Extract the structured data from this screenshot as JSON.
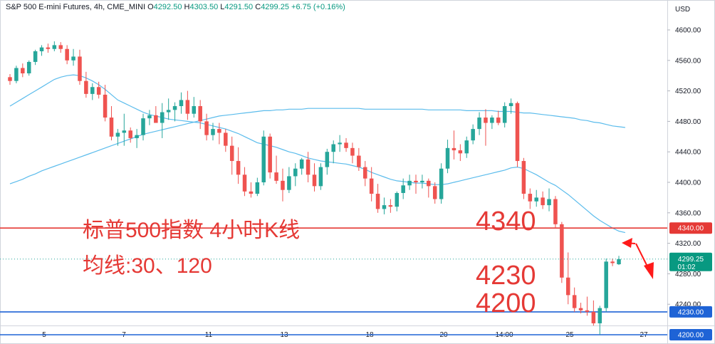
{
  "header": {
    "symbol": "S&P 500 E-mini Futures, 4h, CME_MINI",
    "open_label": "O",
    "open": "4292.50",
    "high_label": "H",
    "high": "4303.50",
    "low_label": "L",
    "low": "4291.50",
    "close_label": "C",
    "close": "4299.25",
    "change": "+6.75 (+0.16%)"
  },
  "annotations": {
    "title_cn": "标普500指数 4小时K线",
    "ma_cn": "均线:30、120",
    "level_4340": "4340",
    "level_4230": "4230",
    "level_4200": "4200"
  },
  "axis": {
    "currency": "USD",
    "price_ticks": [
      "4600.00",
      "4560.00",
      "4520.00",
      "4480.00",
      "4440.00",
      "4400.00",
      "4360.00",
      "4320.00",
      "4280.00",
      "4240.00"
    ],
    "time_ticks": [
      "5",
      "7",
      "11",
      "13",
      "18",
      "20",
      "14:00",
      "25",
      "27"
    ]
  },
  "price_badges": [
    {
      "label": "4340.00",
      "value": 4340,
      "color": "#e53935"
    },
    {
      "label": "4230.00",
      "value": 4230,
      "color": "#1e63d6"
    },
    {
      "label": "4200.00",
      "value": 4200,
      "color": "#1e63d6"
    }
  ],
  "last_price": {
    "label": "4299.25",
    "countdown": "01:02",
    "value": 4299.25,
    "color": "#089981"
  },
  "colors": {
    "up": "#26a69a",
    "down": "#ef5350",
    "ma": "#5bbcec",
    "support": "#1e63d6",
    "resistance": "#e53935"
  },
  "chart_data": {
    "type": "candlestick",
    "timeframe": "4h",
    "y_unit": "USD",
    "ylim": [
      4195,
      4615
    ],
    "horizontal_levels": [
      4340,
      4230,
      4200
    ],
    "series": [
      {
        "name": "K",
        "ohlc": [
          [
            4538,
            4542,
            4528,
            4533
          ],
          [
            4533,
            4553,
            4530,
            4550
          ],
          [
            4550,
            4556,
            4538,
            4543
          ],
          [
            4543,
            4560,
            4540,
            4558
          ],
          [
            4558,
            4574,
            4554,
            4572
          ],
          [
            4572,
            4580,
            4566,
            4577
          ],
          [
            4577,
            4582,
            4570,
            4575
          ],
          [
            4575,
            4585,
            4572,
            4580
          ],
          [
            4580,
            4584,
            4570,
            4575
          ],
          [
            4575,
            4580,
            4555,
            4560
          ],
          [
            4560,
            4575,
            4553,
            4565
          ],
          [
            4565,
            4574,
            4528,
            4533
          ],
          [
            4533,
            4545,
            4511,
            4516
          ],
          [
            4516,
            4530,
            4508,
            4525
          ],
          [
            4525,
            4532,
            4510,
            4515
          ],
          [
            4515,
            4528,
            4480,
            4485
          ],
          [
            4485,
            4500,
            4455,
            4460
          ],
          [
            4460,
            4470,
            4448,
            4465
          ],
          [
            4465,
            4490,
            4448,
            4468
          ],
          [
            4468,
            4472,
            4452,
            4458
          ],
          [
            4458,
            4470,
            4445,
            4462
          ],
          [
            4462,
            4490,
            4455,
            4484
          ],
          [
            4484,
            4495,
            4475,
            4488
          ],
          [
            4488,
            4500,
            4480,
            4478
          ],
          [
            4478,
            4504,
            4458,
            4492
          ],
          [
            4492,
            4510,
            4482,
            4495
          ],
          [
            4495,
            4505,
            4480,
            4500
          ],
          [
            4500,
            4518,
            4490,
            4508
          ],
          [
            4508,
            4520,
            4482,
            4490
          ],
          [
            4490,
            4512,
            4485,
            4500
          ],
          [
            4500,
            4508,
            4470,
            4480
          ],
          [
            4480,
            4490,
            4455,
            4462
          ],
          [
            4462,
            4478,
            4455,
            4470
          ],
          [
            4470,
            4478,
            4450,
            4465
          ],
          [
            4465,
            4470,
            4440,
            4448
          ],
          [
            4448,
            4460,
            4410,
            4428
          ],
          [
            4428,
            4446,
            4398,
            4410
          ],
          [
            4410,
            4420,
            4382,
            4388
          ],
          [
            4388,
            4400,
            4380,
            4385
          ],
          [
            4385,
            4406,
            4382,
            4400
          ],
          [
            4400,
            4468,
            4396,
            4460
          ],
          [
            4460,
            4464,
            4405,
            4413
          ],
          [
            4413,
            4435,
            4398,
            4402
          ],
          [
            4402,
            4418,
            4375,
            4390
          ],
          [
            4390,
            4420,
            4386,
            4408
          ],
          [
            4408,
            4425,
            4395,
            4418
          ],
          [
            4418,
            4432,
            4410,
            4430
          ],
          [
            4430,
            4440,
            4400,
            4410
          ],
          [
            4410,
            4425,
            4388,
            4395
          ],
          [
            4395,
            4425,
            4390,
            4420
          ],
          [
            4420,
            4444,
            4410,
            4440
          ],
          [
            4440,
            4455,
            4425,
            4450
          ],
          [
            4450,
            4462,
            4440,
            4452
          ],
          [
            4452,
            4458,
            4440,
            4445
          ],
          [
            4445,
            4452,
            4425,
            4435
          ],
          [
            4435,
            4445,
            4415,
            4420
          ],
          [
            4420,
            4428,
            4395,
            4405
          ],
          [
            4405,
            4420,
            4375,
            4385
          ],
          [
            4385,
            4398,
            4360,
            4365
          ],
          [
            4365,
            4380,
            4358,
            4370
          ],
          [
            4370,
            4378,
            4360,
            4368
          ],
          [
            4368,
            4388,
            4362,
            4386
          ],
          [
            4386,
            4405,
            4378,
            4396
          ],
          [
            4396,
            4410,
            4390,
            4402
          ],
          [
            4402,
            4410,
            4385,
            4400
          ],
          [
            4400,
            4410,
            4392,
            4402
          ],
          [
            4402,
            4405,
            4380,
            4395
          ],
          [
            4395,
            4400,
            4372,
            4378
          ],
          [
            4378,
            4425,
            4372,
            4418
          ],
          [
            4418,
            4456,
            4412,
            4445
          ],
          [
            4445,
            4468,
            4430,
            4442
          ],
          [
            4442,
            4450,
            4428,
            4438
          ],
          [
            4438,
            4460,
            4432,
            4455
          ],
          [
            4455,
            4476,
            4450,
            4470
          ],
          [
            4470,
            4492,
            4462,
            4485
          ],
          [
            4485,
            4496,
            4448,
            4478
          ],
          [
            4478,
            4488,
            4470,
            4485
          ],
          [
            4485,
            4494,
            4475,
            4478
          ],
          [
            4478,
            4505,
            4472,
            4500
          ],
          [
            4500,
            4510,
            4490,
            4504
          ],
          [
            4504,
            4506,
            4420,
            4428
          ],
          [
            4428,
            4432,
            4378,
            4385
          ],
          [
            4385,
            4392,
            4365,
            4375
          ],
          [
            4375,
            4390,
            4368,
            4380
          ],
          [
            4380,
            4388,
            4365,
            4370
          ],
          [
            4370,
            4392,
            4362,
            4378
          ],
          [
            4378,
            4382,
            4340,
            4345
          ],
          [
            4345,
            4348,
            4268,
            4275
          ],
          [
            4275,
            4308,
            4240,
            4252
          ],
          [
            4252,
            4262,
            4230,
            4235
          ],
          [
            4235,
            4242,
            4228,
            4232
          ],
          [
            4232,
            4250,
            4225,
            4230
          ],
          [
            4230,
            4245,
            4212,
            4215
          ],
          [
            4215,
            4238,
            4200,
            4235
          ],
          [
            4235,
            4300,
            4230,
            4296
          ],
          [
            4296,
            4300,
            4290,
            4294
          ],
          [
            4292.5,
            4303.5,
            4291.5,
            4299.25
          ]
        ]
      },
      {
        "name": "MA30",
        "y": [
          4500,
          4505,
          4510,
          4515,
          4520,
          4525,
          4530,
          4535,
          4538,
          4540,
          4541,
          4540,
          4537,
          4533,
          4528,
          4522,
          4515,
          4508,
          4504,
          4500,
          4496,
          4492,
          4489,
          4487,
          4485,
          4483,
          4482,
          4481,
          4480,
          4479,
          4478,
          4476,
          4474,
          4472,
          4470,
          4467,
          4464,
          4460,
          4456,
          4452,
          4450,
          4448,
          4446,
          4443,
          4440,
          4438,
          4435,
          4432,
          4430,
          4428,
          4427,
          4426,
          4425,
          4424,
          4422,
          4420,
          4417,
          4413,
          4410,
          4407,
          4404,
          4402,
          4401,
          4400,
          4399,
          4399,
          4398,
          4397,
          4397,
          4398,
          4400,
          4402,
          4404,
          4406,
          4408,
          4410,
          4412,
          4414,
          4416,
          4419,
          4420,
          4418,
          4414,
          4410,
          4405,
          4400,
          4396,
          4390,
          4384,
          4377,
          4370,
          4363,
          4356,
          4350,
          4345,
          4340,
          4336,
          4334
        ]
      },
      {
        "name": "MA120",
        "y": [
          4398,
          4401,
          4404,
          4408,
          4411,
          4415,
          4418,
          4421,
          4424,
          4427,
          4430,
          4433,
          4436,
          4439,
          4442,
          4445,
          4448,
          4451,
          4454,
          4457,
          4460,
          4463,
          4465,
          4467,
          4469,
          4471,
          4473,
          4475,
          4477,
          4479,
          4481,
          4483,
          4485,
          4487,
          4488,
          4489,
          4490,
          4491,
          4492,
          4493,
          4494,
          4494,
          4495,
          4495,
          4496,
          4496,
          4496,
          4497,
          4497,
          4497,
          4497,
          4497,
          4497,
          4497,
          4497,
          4497,
          4496,
          4496,
          4496,
          4496,
          4496,
          4496,
          4496,
          4496,
          4496,
          4496,
          4495,
          4495,
          4495,
          4495,
          4495,
          4495,
          4494,
          4494,
          4494,
          4494,
          4494,
          4493,
          4493,
          4493,
          4492,
          4491,
          4491,
          4490,
          4489,
          4488,
          4487,
          4486,
          4485,
          4484,
          4482,
          4481,
          4479,
          4478,
          4476,
          4474,
          4473,
          4472
        ]
      }
    ]
  }
}
